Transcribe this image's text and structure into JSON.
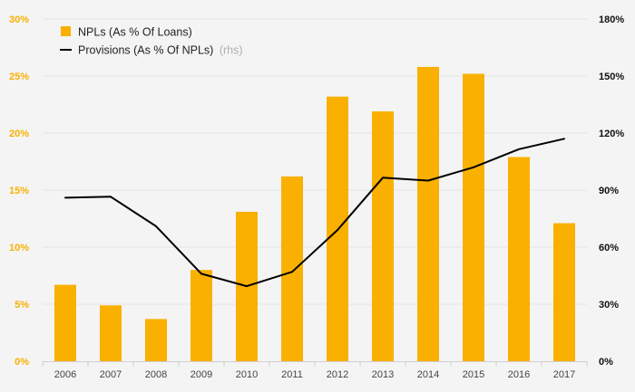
{
  "chart_data": {
    "type": "bar+line",
    "categories": [
      "2006",
      "2007",
      "2008",
      "2009",
      "2010",
      "2011",
      "2012",
      "2013",
      "2014",
      "2015",
      "2016",
      "2017"
    ],
    "series": [
      {
        "name": "NPLs (As % Of Loans)",
        "type": "bar",
        "axis": "left",
        "color": "#f9b000",
        "values": [
          6.7,
          4.9,
          3.7,
          8.0,
          13.1,
          16.2,
          23.2,
          21.9,
          25.8,
          25.2,
          17.9,
          12.1
        ]
      },
      {
        "name": "Provisions (As % Of NPLs)",
        "name_note": "(rhs)",
        "type": "line",
        "axis": "right",
        "color": "#000000",
        "values": [
          86,
          86.5,
          71,
          46,
          39.5,
          47,
          69,
          96.5,
          95,
          102,
          111.5,
          117
        ]
      }
    ],
    "y_left": {
      "range": [
        0,
        30
      ],
      "ticks": [
        0,
        5,
        10,
        15,
        20,
        25,
        30
      ],
      "tick_labels": [
        "0%",
        "5%",
        "10%",
        "15%",
        "20%",
        "25%",
        "30%"
      ],
      "tick_color": "#f9b000"
    },
    "y_right": {
      "range": [
        0,
        180
      ],
      "ticks": [
        0,
        30,
        60,
        90,
        120,
        150,
        180
      ],
      "tick_labels": [
        "0%",
        "30%",
        "60%",
        "90%",
        "120%",
        "150%",
        "180%"
      ],
      "tick_color": "#111111"
    },
    "grid": "horizontal",
    "legend_position": "top-left"
  }
}
